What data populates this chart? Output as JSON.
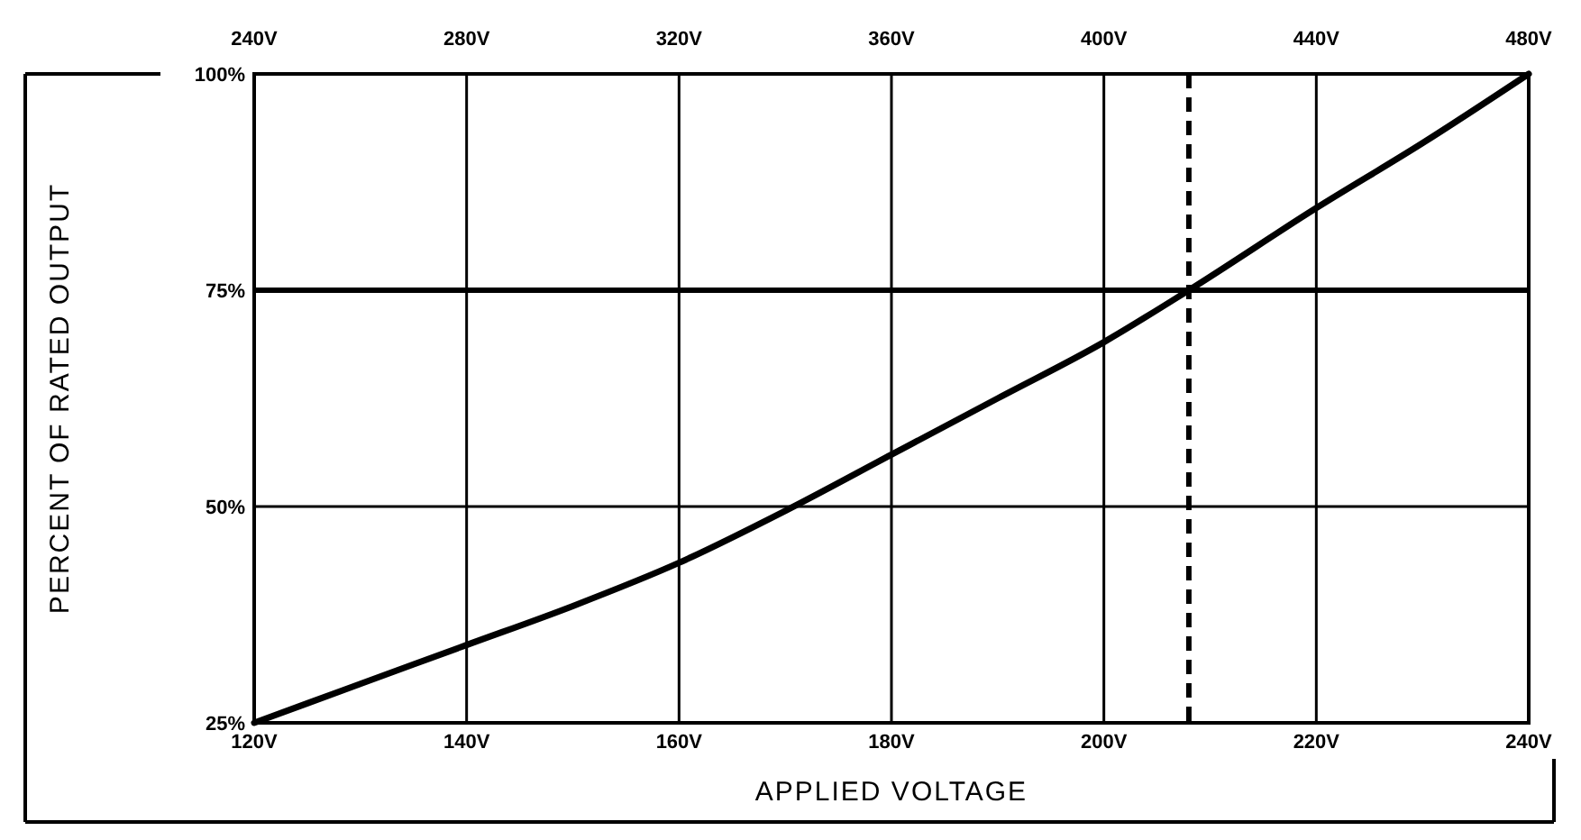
{
  "chart_data": {
    "type": "line",
    "xlabel": "APPLIED VOLTAGE",
    "ylabel": "PERCENT OF RATED OUTPUT",
    "x": [
      120,
      130,
      140,
      150,
      160,
      170,
      180,
      190,
      200,
      208,
      220,
      230,
      240
    ],
    "series": [
      {
        "color": "#000000",
        "values": [
          25,
          29.5,
          34,
          38.5,
          43.5,
          49.5,
          56,
          62.5,
          69,
          75,
          84.5,
          92,
          100
        ]
      }
    ],
    "xlim": [
      120,
      240
    ],
    "xticks": [
      {
        "value": 120,
        "label": "120V"
      },
      {
        "value": 140,
        "label": "140V"
      },
      {
        "value": 160,
        "label": "160V"
      },
      {
        "value": 180,
        "label": "180V"
      },
      {
        "value": 200,
        "label": "200V"
      },
      {
        "value": 220,
        "label": "220V"
      },
      {
        "value": 240,
        "label": "240V"
      }
    ],
    "x2lim": [
      240,
      480
    ],
    "x2ticks": [
      {
        "value": 240,
        "label": "240V"
      },
      {
        "value": 280,
        "label": "280V"
      },
      {
        "value": 320,
        "label": "320V"
      },
      {
        "value": 360,
        "label": "360V"
      },
      {
        "value": 400,
        "label": "400V"
      },
      {
        "value": 440,
        "label": "440V"
      },
      {
        "value": 480,
        "label": "480V"
      }
    ],
    "ylim": [
      25,
      100
    ],
    "yticks": [
      {
        "value": 25,
        "label": "25%"
      },
      {
        "value": 50,
        "label": "50%"
      },
      {
        "value": 75,
        "label": "75%"
      },
      {
        "value": 100,
        "label": "100%"
      }
    ],
    "ref_lines": [
      {
        "axis": "x",
        "value": 208,
        "line_style": "dashed"
      },
      {
        "axis": "y",
        "value": 75
      }
    ],
    "grid": true,
    "marker": "none",
    "line_style": "solid"
  }
}
